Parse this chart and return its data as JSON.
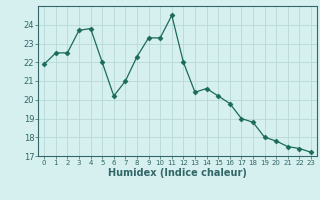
{
  "x": [
    0,
    1,
    2,
    3,
    4,
    5,
    6,
    7,
    8,
    9,
    10,
    11,
    12,
    13,
    14,
    15,
    16,
    17,
    18,
    19,
    20,
    21,
    22,
    23
  ],
  "y": [
    21.9,
    22.5,
    22.5,
    23.7,
    23.8,
    22.0,
    20.2,
    21.0,
    22.3,
    23.3,
    23.3,
    24.5,
    22.0,
    20.4,
    20.6,
    20.2,
    19.8,
    19.0,
    18.8,
    18.0,
    17.8,
    17.5,
    17.4,
    17.2
  ],
  "line_color": "#1a6b5a",
  "marker": "D",
  "marker_size": 2.5,
  "bg_color": "#d6f0f0",
  "grid_color": "#b8d8d8",
  "xlabel": "Humidex (Indice chaleur)",
  "xlabel_fontsize": 7,
  "tick_fontsize": 6,
  "ylim": [
    17,
    25
  ],
  "xlim": [
    -0.5,
    23.5
  ],
  "yticks": [
    17,
    18,
    19,
    20,
    21,
    22,
    23,
    24
  ],
  "xticks": [
    0,
    1,
    2,
    3,
    4,
    5,
    6,
    7,
    8,
    9,
    10,
    11,
    12,
    13,
    14,
    15,
    16,
    17,
    18,
    19,
    20,
    21,
    22,
    23
  ],
  "spine_color": "#336666",
  "tick_color": "#336666",
  "label_color": "#336666"
}
